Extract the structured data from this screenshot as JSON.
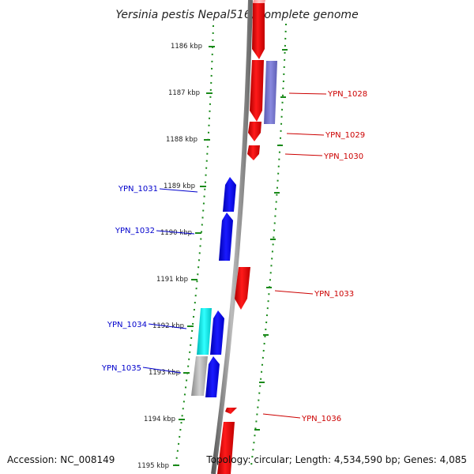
{
  "title": "Yersinia pestis Nepal516, complete genome",
  "footer": {
    "accession": "Accession: NC_008149",
    "summary": "Topology: circular; Length: 4,534,590 bp; Genes: 4,085"
  },
  "axis_labels": [
    "1186 kbp",
    "1187 kbp",
    "1188 kbp",
    "1189 kbp",
    "1190 kbp",
    "1191 kbp",
    "1192 kbp",
    "1193 kbp",
    "1194 kbp",
    "1195 kbp"
  ],
  "colors": {
    "forward": "#ff0000",
    "reverse": "#0000ff",
    "violet": "#7777cc",
    "cyan": "#00e5e5",
    "gray": "#aaaaaa",
    "backbone": "#888888",
    "ruler": "#1a8a1a"
  },
  "genes": [
    {
      "id": "YPN_1028",
      "label": "YPN_1028",
      "strand": "forward"
    },
    {
      "id": "YPN_1029",
      "label": "YPN_1029",
      "strand": "forward"
    },
    {
      "id": "YPN_1030",
      "label": "YPN_1030",
      "strand": "forward"
    },
    {
      "id": "YPN_1031",
      "label": "YPN_1031",
      "strand": "reverse"
    },
    {
      "id": "YPN_1032",
      "label": "YPN_1032",
      "strand": "reverse"
    },
    {
      "id": "YPN_1033",
      "label": "YPN_1033",
      "strand": "forward"
    },
    {
      "id": "YPN_1034",
      "label": "YPN_1034",
      "strand": "reverse"
    },
    {
      "id": "YPN_1035",
      "label": "YPN_1035",
      "strand": "reverse"
    },
    {
      "id": "YPN_1036",
      "label": "YPN_1036",
      "strand": "forward"
    }
  ]
}
